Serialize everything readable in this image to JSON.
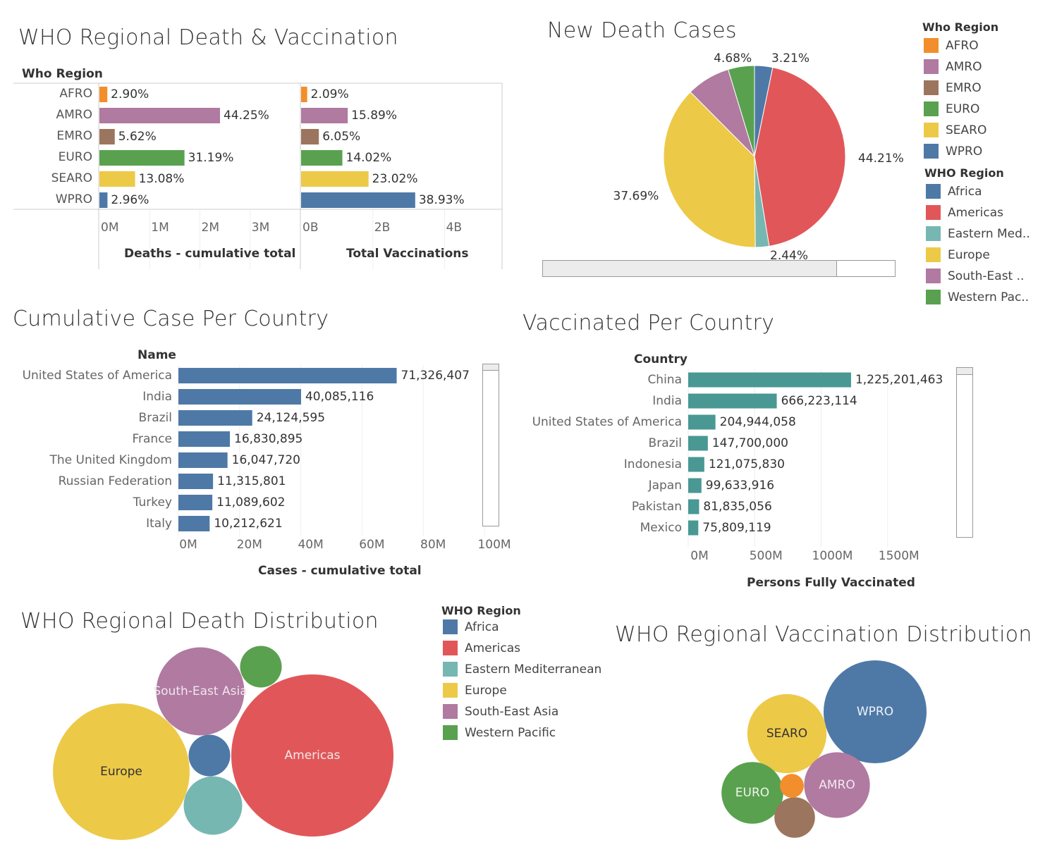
{
  "chart_data": [
    {
      "id": "regional_bars",
      "type": "bar",
      "title": "WHO Regional Death & Vaccination",
      "row_field_label": "Who Region",
      "categories": [
        "AFRO",
        "AMRO",
        "EMRO",
        "EURO",
        "SEARO",
        "WPRO"
      ],
      "colors": [
        "#f28e2b",
        "#b07aa1",
        "#9c755f",
        "#59a14f",
        "#edc948",
        "#4e79a7"
      ],
      "panels": [
        {
          "name": "Deaths - cumulative total",
          "xlabel": "Deaths - cumulative total",
          "xlim": [
            0,
            4000000
          ],
          "ticks": [
            0,
            1000000,
            2000000,
            3000000
          ],
          "tick_labels": [
            "0M",
            "1M",
            "2M",
            "3M"
          ],
          "values": [
            157000,
            2400000,
            305000,
            1693000,
            710000,
            160000
          ],
          "labels": [
            "2.90%",
            "44.25%",
            "5.62%",
            "31.19%",
            "13.08%",
            "2.96%"
          ]
        },
        {
          "name": "Total Vaccinations",
          "xlabel": "Total Vaccinations",
          "xlim": [
            0,
            5600000000
          ],
          "ticks": [
            0,
            2000000000,
            4000000000
          ],
          "tick_labels": [
            "0B",
            "2B",
            "4B"
          ],
          "values": [
            170000000,
            1300000000,
            495000000,
            1150000000,
            1880000000,
            3180000000
          ],
          "labels": [
            "2.09%",
            "15.89%",
            "6.05%",
            "14.02%",
            "23.02%",
            "38.93%"
          ]
        }
      ]
    },
    {
      "id": "new_death_pie",
      "type": "pie",
      "title": "New Death Cases",
      "slices": [
        {
          "name": "Africa",
          "value": 3.21,
          "color": "#4e79a7",
          "label": "3.21%"
        },
        {
          "name": "Americas",
          "value": 44.21,
          "color": "#e15759",
          "label": "44.21%"
        },
        {
          "name": "Eastern Med..",
          "value": 2.44,
          "color": "#76b7b2",
          "label": "2.44%"
        },
        {
          "name": "Europe",
          "value": 37.69,
          "color": "#edc948",
          "label": "37.69%"
        },
        {
          "name": "South-East ..",
          "value": 7.77,
          "color": "#b07aa1",
          "label": ""
        },
        {
          "name": "Western Pac..",
          "value": 4.68,
          "color": "#59a14f",
          "label": "4.68%"
        }
      ]
    },
    {
      "id": "cases_per_country",
      "type": "bar",
      "title": "Cumulative Case Per Country",
      "row_field_label": "Name",
      "xlabel": "Cases - cumulative total",
      "xlim": [
        0,
        100000000
      ],
      "ticks": [
        0,
        20000000,
        40000000,
        60000000,
        80000000,
        100000000
      ],
      "tick_labels": [
        "0M",
        "20M",
        "40M",
        "60M",
        "80M",
        "100M"
      ],
      "color": "#4e79a7",
      "categories": [
        "United States of America",
        "India",
        "Brazil",
        "France",
        "The United Kingdom",
        "Russian Federation",
        "Turkey",
        "Italy"
      ],
      "values": [
        71326407,
        40085116,
        24124595,
        16830895,
        16047720,
        11315801,
        11089602,
        10212621
      ],
      "labels": [
        "71,326,407",
        "40,085,116",
        "24,124,595",
        "16,830,895",
        "16,047,720",
        "11,315,801",
        "11,089,602",
        "10,212,621"
      ]
    },
    {
      "id": "vaccinated_per_country",
      "type": "bar",
      "title": "Vaccinated Per Country",
      "row_field_label": "Country",
      "xlabel": "Persons Fully Vaccinated",
      "xlim": [
        0,
        2000000000
      ],
      "ticks": [
        0,
        500000000,
        1000000000,
        1500000000
      ],
      "tick_labels": [
        "0M",
        "500M",
        "1000M",
        "1500M"
      ],
      "color": "#499894",
      "categories": [
        "China",
        "India",
        "United States of America",
        "Brazil",
        "Indonesia",
        "Japan",
        "Pakistan",
        "Mexico"
      ],
      "values": [
        1225201463,
        666223114,
        204944058,
        147700000,
        121075830,
        99633916,
        81835056,
        75809119
      ],
      "labels": [
        "1,225,201,463",
        "666,223,114",
        "204,944,058",
        "147,700,000",
        "121,075,830",
        "99,633,916",
        "81,835,056",
        "75,809,119"
      ]
    },
    {
      "id": "death_bubbles",
      "type": "bubble",
      "title": "WHO Regional Death Distribution",
      "bubbles": [
        {
          "name": "Americas",
          "label": "Americas",
          "value": 100,
          "color": "#e15759",
          "text_color": "#f4e9e9"
        },
        {
          "name": "Europe",
          "label": "Europe",
          "value": 71,
          "color": "#edc948",
          "text_color": "#333333"
        },
        {
          "name": "South-East Asia",
          "label": "South-East Asia",
          "value": 29.5,
          "color": "#b07aa1",
          "text_color": "#f1e6ee"
        },
        {
          "name": "Eastern Mediterranean",
          "label": "",
          "value": 13,
          "color": "#76b7b2",
          "text_color": "#ffffff"
        },
        {
          "name": "Western Pacific",
          "label": "",
          "value": 6.6,
          "color": "#59a14f",
          "text_color": "#ffffff"
        },
        {
          "name": "Africa",
          "label": "",
          "value": 6.6,
          "color": "#4e79a7",
          "text_color": "#ffffff"
        }
      ]
    },
    {
      "id": "vaccination_bubbles",
      "type": "bubble",
      "title": "WHO Regional Vaccination Distribution",
      "bubbles": [
        {
          "name": "WPRO",
          "label": "WPRO",
          "value": 38.93,
          "color": "#4e79a7",
          "text_color": "#eef2f7"
        },
        {
          "name": "SEARO",
          "label": "SEARO",
          "value": 23.02,
          "color": "#edc948",
          "text_color": "#333333"
        },
        {
          "name": "AMRO",
          "label": "AMRO",
          "value": 15.89,
          "color": "#b07aa1",
          "text_color": "#f4e9f1"
        },
        {
          "name": "EURO",
          "label": "EURO",
          "value": 14.02,
          "color": "#59a14f",
          "text_color": "#eef6ec"
        },
        {
          "name": "EMRO",
          "label": "",
          "value": 6.05,
          "color": "#9c755f",
          "text_color": "#ffffff"
        },
        {
          "name": "AFRO",
          "label": "",
          "value": 2.09,
          "color": "#f28e2b",
          "text_color": "#ffffff"
        }
      ]
    }
  ],
  "legends": {
    "who_region_codes": {
      "title": "Who Region",
      "items": [
        {
          "label": "AFRO",
          "color": "#f28e2b"
        },
        {
          "label": "AMRO",
          "color": "#b07aa1"
        },
        {
          "label": "EMRO",
          "color": "#9c755f"
        },
        {
          "label": "EURO",
          "color": "#59a14f"
        },
        {
          "label": "SEARO",
          "color": "#edc948"
        },
        {
          "label": "WPRO",
          "color": "#4e79a7"
        }
      ]
    },
    "who_region_names_short": {
      "title": "WHO Region",
      "items": [
        {
          "label": "Africa",
          "color": "#4e79a7"
        },
        {
          "label": "Americas",
          "color": "#e15759"
        },
        {
          "label": "Eastern Med..",
          "color": "#76b7b2"
        },
        {
          "label": "Europe",
          "color": "#edc948"
        },
        {
          "label": "South-East ..",
          "color": "#b07aa1"
        },
        {
          "label": "Western Pac..",
          "color": "#59a14f"
        }
      ]
    },
    "who_region_names_full": {
      "title": "WHO Region",
      "items": [
        {
          "label": "Africa",
          "color": "#4e79a7"
        },
        {
          "label": "Americas",
          "color": "#e15759"
        },
        {
          "label": "Eastern Mediterranean",
          "color": "#76b7b2"
        },
        {
          "label": "Europe",
          "color": "#edc948"
        },
        {
          "label": "South-East Asia",
          "color": "#b07aa1"
        },
        {
          "label": "Western Pacific",
          "color": "#59a14f"
        }
      ]
    }
  }
}
